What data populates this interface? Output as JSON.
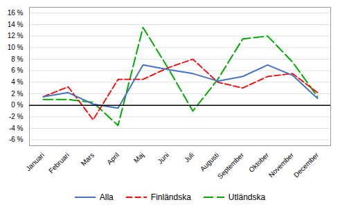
{
  "chart_data": {
    "type": "line",
    "categories": [
      "Januari",
      "Februari",
      "Mars",
      "April",
      "Maj",
      "Juni",
      "Juli",
      "Augusti",
      "September",
      "Oktober",
      "November",
      "December"
    ],
    "series": [
      {
        "name": "Alla",
        "color": "#4472C4",
        "line_style": "solid",
        "values": [
          1.5,
          2.2,
          0.2,
          -0.5,
          7.0,
          6.2,
          5.5,
          4.2,
          5.0,
          7.0,
          5.2,
          1.2
        ]
      },
      {
        "name": "Finländska",
        "color": "#FF0000",
        "line_style": "dashed",
        "values": [
          1.5,
          3.2,
          -2.5,
          4.5,
          4.5,
          6.5,
          8.0,
          4.0,
          3.0,
          5.0,
          5.5,
          2.2
        ]
      },
      {
        "name": "Utländska",
        "color": "#00AA00",
        "line_style": "long-dashed",
        "values": [
          1.0,
          1.0,
          0.5,
          -3.5,
          13.5,
          6.5,
          -1.0,
          4.5,
          11.5,
          12.0,
          7.5,
          1.5
        ]
      }
    ],
    "ylim": [
      -7,
      17
    ],
    "yticks": [
      {
        "value": -6,
        "label": "-6 %"
      },
      {
        "value": -4,
        "label": "-4 %"
      },
      {
        "value": -2,
        "label": "-2 %"
      },
      {
        "value": 0,
        "label": "0 %"
      },
      {
        "value": 2,
        "label": "2 %"
      },
      {
        "value": 4,
        "label": "4 %"
      },
      {
        "value": 6,
        "label": "6 %"
      },
      {
        "value": 8,
        "label": "8 %"
      },
      {
        "value": 10,
        "label": "10 %"
      },
      {
        "value": 12,
        "label": "12 %"
      },
      {
        "value": 14,
        "label": "14 %"
      },
      {
        "value": 16,
        "label": "16 %"
      }
    ],
    "grid": true,
    "legend": "bottom"
  }
}
